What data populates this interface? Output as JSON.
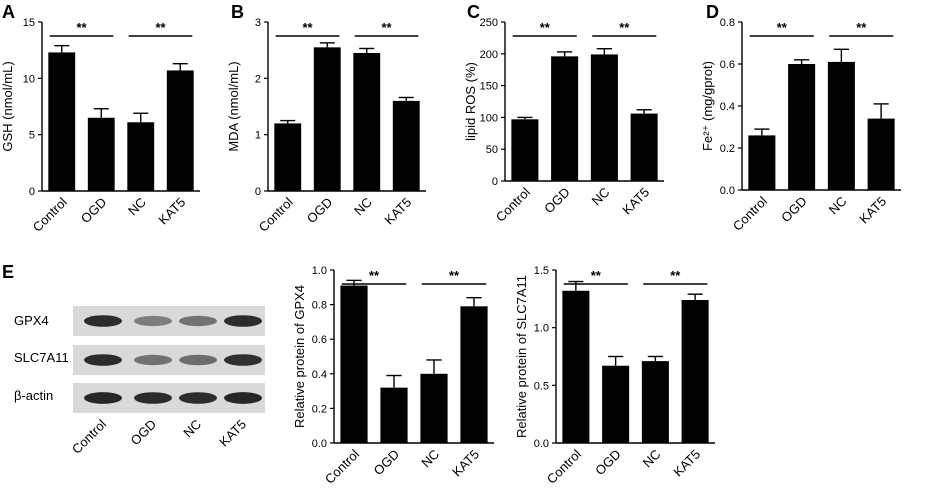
{
  "panels": {
    "A": "A",
    "B": "B",
    "C": "C",
    "D": "D",
    "E": "E"
  },
  "blot": {
    "rows": [
      {
        "label": "GPX4",
        "intensities": [
          0.9,
          0.55,
          0.6,
          0.9
        ]
      },
      {
        "label": "SLC7A11",
        "intensities": [
          0.9,
          0.6,
          0.62,
          0.88
        ]
      },
      {
        "label": "β-actin",
        "intensities": [
          0.92,
          0.9,
          0.9,
          0.92
        ]
      }
    ],
    "lanes": [
      "Control",
      "OGD",
      "NC",
      "KAT5"
    ]
  },
  "chart_data": [
    {
      "id": "A",
      "type": "bar",
      "categories": [
        "Control",
        "OGD",
        "NC",
        "KAT5"
      ],
      "values": [
        12.3,
        6.5,
        6.1,
        10.7
      ],
      "errors": [
        0.6,
        0.8,
        0.8,
        0.6
      ],
      "ylabel": "GSH (nmol/mL)",
      "ylim": [
        0,
        15
      ],
      "yticks": [
        0,
        5,
        10,
        15
      ],
      "significance": [
        {
          "from": 0,
          "to": 1,
          "label": "**"
        },
        {
          "from": 2,
          "to": 3,
          "label": "**"
        }
      ]
    },
    {
      "id": "B",
      "type": "bar",
      "categories": [
        "Control",
        "OGD",
        "NC",
        "KAT5"
      ],
      "values": [
        1.2,
        2.55,
        2.45,
        1.6
      ],
      "errors": [
        0.05,
        0.08,
        0.08,
        0.06
      ],
      "ylabel": "MDA (nmol/mL)",
      "ylim": [
        0,
        3
      ],
      "yticks": [
        0,
        1,
        2,
        3
      ],
      "significance": [
        {
          "from": 0,
          "to": 1,
          "label": "**"
        },
        {
          "from": 2,
          "to": 3,
          "label": "**"
        }
      ]
    },
    {
      "id": "C",
      "type": "bar",
      "categories": [
        "Control",
        "OGD",
        "NC",
        "KAT5"
      ],
      "values": [
        97,
        196,
        199,
        106
      ],
      "errors": [
        3,
        7,
        9,
        6
      ],
      "ylabel": "lipid ROS (%)",
      "ylim": [
        0,
        250
      ],
      "yticks": [
        0,
        50,
        100,
        150,
        200,
        250
      ],
      "significance": [
        {
          "from": 0,
          "to": 1,
          "label": "**"
        },
        {
          "from": 2,
          "to": 3,
          "label": "**"
        }
      ]
    },
    {
      "id": "D",
      "type": "bar",
      "categories": [
        "Control",
        "OGD",
        "NC",
        "KAT5"
      ],
      "values": [
        0.26,
        0.6,
        0.61,
        0.34
      ],
      "errors": [
        0.03,
        0.02,
        0.06,
        0.07
      ],
      "ylabel": "Fe²⁺ (mg/gprot)",
      "ylim": [
        0,
        0.8
      ],
      "yticks": [
        0.0,
        0.2,
        0.4,
        0.6,
        0.8
      ],
      "significance": [
        {
          "from": 0,
          "to": 1,
          "label": "**"
        },
        {
          "from": 2,
          "to": 3,
          "label": "**"
        }
      ]
    },
    {
      "id": "E1",
      "type": "bar",
      "categories": [
        "Control",
        "OGD",
        "NC",
        "KAT5"
      ],
      "values": [
        0.91,
        0.32,
        0.4,
        0.79
      ],
      "errors": [
        0.03,
        0.07,
        0.08,
        0.05
      ],
      "ylabel": "Relative protein of GPX4",
      "ylim": [
        0,
        1.0
      ],
      "yticks": [
        0.0,
        0.2,
        0.4,
        0.6,
        0.8,
        1.0
      ],
      "significance": [
        {
          "from": 0,
          "to": 1,
          "label": "**"
        },
        {
          "from": 2,
          "to": 3,
          "label": "**"
        }
      ]
    },
    {
      "id": "E2",
      "type": "bar",
      "categories": [
        "Control",
        "OGD",
        "NC",
        "KAT5"
      ],
      "values": [
        1.32,
        0.67,
        0.71,
        1.24
      ],
      "errors": [
        0.08,
        0.08,
        0.04,
        0.05
      ],
      "ylabel": "Relative protein of SLC7A11",
      "ylim": [
        0,
        1.5
      ],
      "yticks": [
        0.0,
        0.5,
        1.0,
        1.5
      ],
      "significance": [
        {
          "from": 0,
          "to": 1,
          "label": "**"
        },
        {
          "from": 2,
          "to": 3,
          "label": "**"
        }
      ]
    }
  ]
}
